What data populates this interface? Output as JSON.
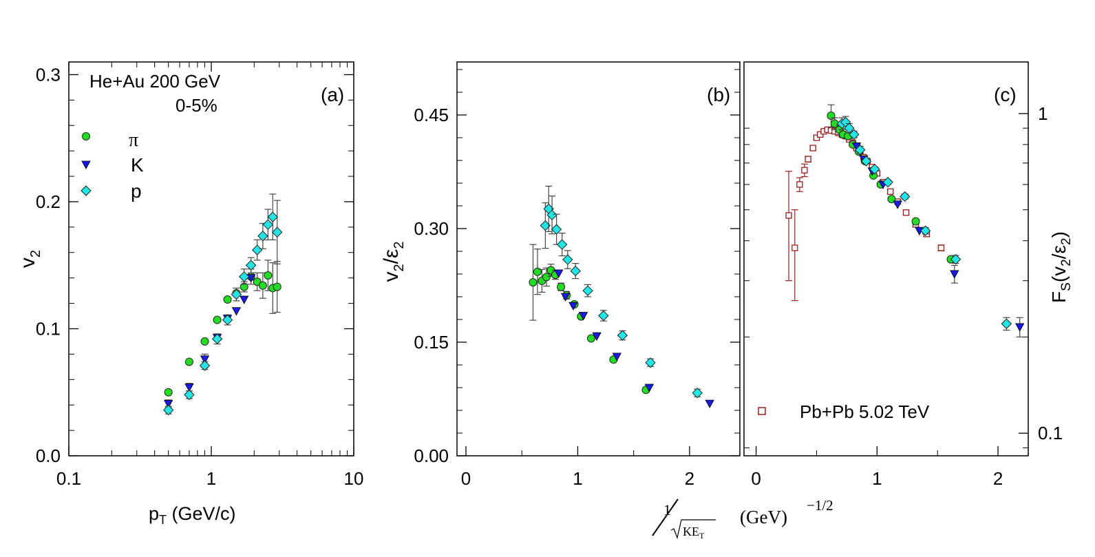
{
  "chart_data": [
    {
      "panel": "a",
      "type": "scatter",
      "panel_label": "(a)",
      "annotation_line1": "He+Au  200 GeV",
      "annotation_line2": "0-5%",
      "xlabel_main": "p",
      "xlabel_sub": "T",
      "xlabel_rest": " (GeV/c)",
      "ylabel_main": "v",
      "ylabel_sub": "2",
      "x_scale": "log",
      "xlim": [
        0.1,
        10
      ],
      "ylim": [
        0,
        0.31
      ],
      "x_ticks": [
        0.1,
        1,
        10
      ],
      "x_tick_labels": [
        "0.1",
        "1",
        "10"
      ],
      "y_ticks": [
        0,
        0.1,
        0.2,
        0.3
      ],
      "y_tick_labels": [
        "0.0",
        "0.1",
        "0.2",
        "0.3"
      ],
      "y_minor_step": 0.02,
      "legend": [
        "π",
        "K",
        "p"
      ],
      "series": [
        {
          "name": "π",
          "marker": "circle",
          "color": "#22dd22",
          "points": [
            [
              0.5,
              0.05,
              0
            ],
            [
              0.7,
              0.074,
              0
            ],
            [
              0.9,
              0.09,
              0
            ],
            [
              1.1,
              0.107,
              0
            ],
            [
              1.3,
              0.123,
              0
            ],
            [
              1.5,
              0.128,
              0
            ],
            [
              1.7,
              0.133,
              0.004
            ],
            [
              1.9,
              0.141,
              0.006
            ],
            [
              2.1,
              0.137,
              0.007
            ],
            [
              2.3,
              0.134,
              0.01
            ],
            [
              2.5,
              0.142,
              0.012
            ],
            [
              2.7,
              0.132,
              0.02
            ],
            [
              2.9,
              0.133,
              0.02
            ]
          ]
        },
        {
          "name": "K",
          "marker": "triangle-down",
          "color": "#1a1ae6",
          "points": [
            [
              0.5,
              0.041,
              0.003
            ],
            [
              0.7,
              0.054,
              0.003
            ],
            [
              0.9,
              0.076,
              0.004
            ],
            [
              1.1,
              0.093,
              0
            ],
            [
              1.3,
              0.108,
              0
            ],
            [
              1.5,
              0.114,
              0
            ],
            [
              1.7,
              0.123,
              0
            ],
            [
              1.9,
              0.14,
              0
            ]
          ]
        },
        {
          "name": "p",
          "marker": "diamond",
          "color": "#22e6e6",
          "points": [
            [
              0.5,
              0.036,
              0.003
            ],
            [
              0.7,
              0.048,
              0.003
            ],
            [
              0.9,
              0.071,
              0.003
            ],
            [
              1.1,
              0.092,
              0.004
            ],
            [
              1.3,
              0.107,
              0.004
            ],
            [
              1.5,
              0.127,
              0.005
            ],
            [
              1.7,
              0.141,
              0.006
            ],
            [
              1.9,
              0.15,
              0.006
            ],
            [
              2.1,
              0.162,
              0.008
            ],
            [
              2.3,
              0.173,
              0.01
            ],
            [
              2.5,
              0.182,
              0.012
            ],
            [
              2.7,
              0.188,
              0.018
            ],
            [
              2.9,
              0.176,
              0.025
            ]
          ]
        }
      ]
    },
    {
      "panel": "b",
      "type": "scatter",
      "panel_label": "(b)",
      "ylabel_main": "v",
      "ylabel_sub": "2",
      "ylabel_mid": "/ε",
      "ylabel_sub2": "2",
      "xlim": [
        -0.08,
        2.45
      ],
      "ylim": [
        0,
        0.52
      ],
      "x_ticks": [
        0,
        1,
        2
      ],
      "x_tick_labels": [
        "0",
        "1",
        "2"
      ],
      "y_ticks": [
        0,
        0.15,
        0.3,
        0.45
      ],
      "y_tick_labels": [
        "0.00",
        "0.15",
        "0.30",
        "0.45"
      ],
      "y_minor_step": 0.03,
      "series": [
        {
          "name": "π",
          "marker": "circle",
          "color": "#22dd22",
          "points": [
            [
              0.6,
              0.229,
              0.05
            ],
            [
              0.64,
              0.243,
              0.03
            ],
            [
              0.68,
              0.231,
              0.015
            ],
            [
              0.72,
              0.236,
              0.012
            ],
            [
              0.76,
              0.245,
              0.008
            ],
            [
              0.8,
              0.239,
              0.006
            ],
            [
              0.85,
              0.223,
              0.005
            ],
            [
              0.9,
              0.212,
              0.005
            ],
            [
              0.97,
              0.2,
              0
            ],
            [
              1.03,
              0.184,
              0
            ],
            [
              1.12,
              0.155,
              0
            ],
            [
              1.32,
              0.127,
              0
            ],
            [
              1.61,
              0.087,
              0
            ]
          ]
        },
        {
          "name": "K",
          "marker": "triangle-down",
          "color": "#1a1ae6",
          "points": [
            [
              0.83,
              0.241,
              0
            ],
            [
              0.89,
              0.21,
              0
            ],
            [
              0.96,
              0.198,
              0
            ],
            [
              1.05,
              0.185,
              0
            ],
            [
              1.17,
              0.158,
              0
            ],
            [
              1.35,
              0.131,
              0
            ],
            [
              1.64,
              0.09,
              0
            ],
            [
              2.18,
              0.069,
              0
            ]
          ]
        },
        {
          "name": "p",
          "marker": "diamond",
          "color": "#22e6e6",
          "points": [
            [
              0.71,
              0.304,
              0.03
            ],
            [
              0.74,
              0.326,
              0.03
            ],
            [
              0.77,
              0.318,
              0.025
            ],
            [
              0.81,
              0.299,
              0.02
            ],
            [
              0.86,
              0.279,
              0.015
            ],
            [
              0.91,
              0.259,
              0.012
            ],
            [
              0.98,
              0.244,
              0.01
            ],
            [
              1.09,
              0.218,
              0.008
            ],
            [
              1.23,
              0.185,
              0.007
            ],
            [
              1.4,
              0.159,
              0.006
            ],
            [
              1.65,
              0.123,
              0.005
            ],
            [
              2.07,
              0.083,
              0.005
            ]
          ]
        }
      ]
    },
    {
      "panel": "c",
      "type": "scatter",
      "panel_label": "(c)",
      "xlabel_frac_num": "1",
      "xlabel_frac_den": "KE",
      "xlabel_frac_sub": "T",
      "xlabel_unit": "(GeV)",
      "xlabel_exp": "−1/2",
      "ylabel_main": "F",
      "ylabel_sub": "S",
      "ylabel_mid": "(v",
      "ylabel_sub2": "2",
      "ylabel_mid2": "/ε",
      "ylabel_sub3": "2",
      "ylabel_end": ")",
      "y_scale": "log",
      "xlim": [
        -0.1,
        2.25
      ],
      "ylim": [
        0.085,
        1.45
      ],
      "x_ticks": [
        0,
        1,
        2
      ],
      "x_tick_labels": [
        "0",
        "1",
        "2"
      ],
      "y_ticks": [
        0.1,
        1
      ],
      "y_tick_labels": [
        "0.1",
        "1"
      ],
      "legend": [
        "Pb+Pb  5.02 TeV"
      ],
      "series": [
        {
          "name": "π",
          "marker": "circle",
          "color": "#22dd22",
          "points": [
            [
              0.62,
              0.985,
              0.08
            ],
            [
              0.65,
              0.93,
              0.04
            ],
            [
              0.69,
              0.89,
              0.03
            ],
            [
              0.72,
              0.86,
              0.02
            ],
            [
              0.76,
              0.85,
              0.015
            ],
            [
              0.8,
              0.8,
              0.01
            ],
            [
              0.85,
              0.76,
              0
            ],
            [
              0.9,
              0.71,
              0
            ],
            [
              0.97,
              0.64,
              0
            ],
            [
              1.03,
              0.6,
              0
            ],
            [
              1.12,
              0.54,
              0
            ],
            [
              1.32,
              0.46,
              0
            ],
            [
              1.61,
              0.35,
              0
            ]
          ]
        },
        {
          "name": "K",
          "marker": "triangle-down",
          "color": "#1a1ae6",
          "points": [
            [
              0.83,
              0.79,
              0
            ],
            [
              0.89,
              0.72,
              0
            ],
            [
              0.96,
              0.66,
              0
            ],
            [
              1.05,
              0.6,
              0
            ],
            [
              1.17,
              0.52,
              0
            ],
            [
              1.35,
              0.43,
              0
            ],
            [
              1.64,
              0.315,
              0.02
            ],
            [
              2.18,
              0.215,
              0.015
            ]
          ]
        },
        {
          "name": "p",
          "marker": "diamond",
          "color": "#22e6e6",
          "points": [
            [
              0.71,
              0.93,
              0.04
            ],
            [
              0.74,
              0.94,
              0.04
            ],
            [
              0.77,
              0.9,
              0.03
            ],
            [
              0.81,
              0.86,
              0.02
            ],
            [
              0.86,
              0.77,
              0.02
            ],
            [
              0.91,
              0.71,
              0.015
            ],
            [
              0.98,
              0.67,
              0.01
            ],
            [
              1.09,
              0.61,
              0.01
            ],
            [
              1.23,
              0.55,
              0.01
            ],
            [
              1.4,
              0.43,
              0.01
            ],
            [
              1.65,
              0.35,
              0.01
            ],
            [
              2.07,
              0.22,
              0.01
            ]
          ]
        },
        {
          "name": "Pb+Pb  5.02 TeV",
          "marker": "open-square",
          "color": "#9b1c1c",
          "points": [
            [
              0.27,
              0.48,
              0.18
            ],
            [
              0.32,
              0.38,
              0.12
            ],
            [
              0.36,
              0.6,
              0.03
            ],
            [
              0.4,
              0.665,
              0.03
            ],
            [
              0.43,
              0.72,
              0.015
            ],
            [
              0.47,
              0.78,
              0.01
            ],
            [
              0.5,
              0.84,
              0.01
            ],
            [
              0.53,
              0.86,
              0.01
            ],
            [
              0.56,
              0.88,
              0.01
            ],
            [
              0.59,
              0.89,
              0.01
            ],
            [
              0.62,
              0.885,
              0.01
            ],
            [
              0.65,
              0.88,
              0.01
            ],
            [
              0.68,
              0.87,
              0.008
            ],
            [
              0.71,
              0.86,
              0.008
            ],
            [
              0.74,
              0.85,
              0.008
            ],
            [
              0.77,
              0.83,
              0.008
            ],
            [
              0.8,
              0.81,
              0.008
            ],
            [
              0.83,
              0.78,
              0.008
            ],
            [
              0.86,
              0.76,
              0.008
            ],
            [
              0.89,
              0.73,
              0.008
            ],
            [
              0.92,
              0.71,
              0.008
            ],
            [
              0.96,
              0.68,
              0.008
            ],
            [
              1.0,
              0.65,
              0.008
            ],
            [
              1.05,
              0.61,
              0.008
            ],
            [
              1.11,
              0.57,
              0.008
            ],
            [
              1.17,
              0.53,
              0.008
            ],
            [
              1.24,
              0.49,
              0.008
            ],
            [
              1.32,
              0.45,
              0.008
            ],
            [
              1.41,
              0.42,
              0.008
            ],
            [
              1.53,
              0.38,
              0.008
            ]
          ]
        }
      ]
    }
  ]
}
